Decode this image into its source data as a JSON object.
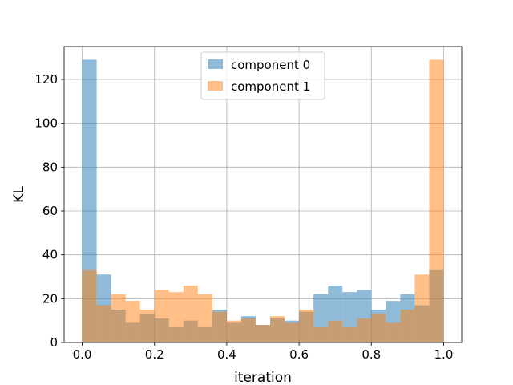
{
  "chart_data": {
    "type": "bar",
    "xlabel": "iteration",
    "ylabel": "KL",
    "xlim": [
      -0.05,
      1.05
    ],
    "ylim": [
      0,
      135
    ],
    "xticks": [
      0.0,
      0.2,
      0.4,
      0.6,
      0.8,
      1.0
    ],
    "xtick_labels": [
      "0.0",
      "0.2",
      "0.4",
      "0.6",
      "0.8",
      "1.0"
    ],
    "yticks": [
      0,
      20,
      40,
      60,
      80,
      100,
      120
    ],
    "ytick_labels": [
      "0",
      "20",
      "40",
      "60",
      "80",
      "100",
      "120"
    ],
    "grid": true,
    "legend_position": "top-center",
    "bin_edges": [
      0.0,
      0.04,
      0.08,
      0.12,
      0.16,
      0.2,
      0.24,
      0.28,
      0.32,
      0.36,
      0.4,
      0.44,
      0.48,
      0.52,
      0.56,
      0.6,
      0.64,
      0.68,
      0.72,
      0.76,
      0.8,
      0.84,
      0.88,
      0.92,
      0.96,
      1.0
    ],
    "series": [
      {
        "name": "component 0",
        "color": "#1f77b4",
        "values": [
          129,
          31,
          15,
          9,
          13,
          11,
          7,
          10,
          7,
          15,
          9,
          12,
          8,
          11,
          10,
          14,
          22,
          26,
          23,
          24,
          15,
          19,
          22,
          17,
          33
        ]
      },
      {
        "name": "component 1",
        "color": "#ff7f0e",
        "values": [
          33,
          17,
          22,
          19,
          15,
          24,
          23,
          26,
          22,
          14,
          10,
          11,
          8,
          12,
          9,
          15,
          7,
          10,
          7,
          11,
          13,
          9,
          15,
          31,
          129
        ]
      }
    ]
  }
}
